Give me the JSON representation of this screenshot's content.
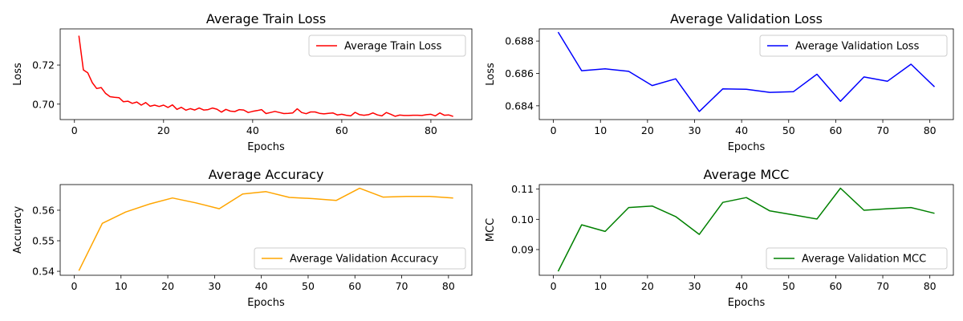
{
  "chart_data": [
    {
      "type": "line",
      "title": "Average Train Loss",
      "xlabel": "Epochs",
      "ylabel": "Loss",
      "xlim": [
        -3.2,
        89.2
      ],
      "ylim": [
        0.6921,
        0.7385
      ],
      "xticks": [
        0,
        20,
        40,
        60,
        80
      ],
      "yticks": [
        0.7,
        0.72
      ],
      "ytick_labels": [
        "0.70",
        "0.72"
      ],
      "legend": "upper right",
      "grid": false,
      "series": [
        {
          "name": "Average Train Loss",
          "color": "#ff0000",
          "x": [
            1,
            2,
            3,
            4,
            5,
            6,
            7,
            8,
            9,
            10,
            11,
            12,
            13,
            14,
            15,
            16,
            17,
            18,
            19,
            20,
            21,
            22,
            23,
            24,
            25,
            26,
            27,
            28,
            29,
            30,
            31,
            32,
            33,
            34,
            35,
            36,
            37,
            38,
            39,
            40,
            41,
            42,
            43,
            44,
            45,
            46,
            47,
            48,
            49,
            50,
            51,
            52,
            53,
            54,
            55,
            56,
            57,
            58,
            59,
            60,
            61,
            62,
            63,
            64,
            65,
            66,
            67,
            68,
            69,
            70,
            71,
            72,
            73,
            74,
            75,
            76,
            77,
            78,
            79,
            80,
            81,
            82,
            83,
            84,
            85
          ],
          "y": [
            0.735,
            0.7175,
            0.716,
            0.711,
            0.708,
            0.7085,
            0.7055,
            0.7038,
            0.7035,
            0.7033,
            0.7012,
            0.7015,
            0.7004,
            0.7011,
            0.6995,
            0.7008,
            0.6989,
            0.6995,
            0.6988,
            0.6995,
            0.6983,
            0.6996,
            0.6973,
            0.6984,
            0.6969,
            0.6977,
            0.697,
            0.698,
            0.697,
            0.6972,
            0.698,
            0.6974,
            0.6959,
            0.6973,
            0.6964,
            0.6962,
            0.6972,
            0.697,
            0.6957,
            0.6963,
            0.6967,
            0.6972,
            0.6952,
            0.6957,
            0.6963,
            0.6957,
            0.6952,
            0.6953,
            0.6955,
            0.6976,
            0.6957,
            0.6951,
            0.696,
            0.696,
            0.6953,
            0.695,
            0.6953,
            0.6955,
            0.6945,
            0.6948,
            0.6943,
            0.694,
            0.6958,
            0.6946,
            0.6943,
            0.6946,
            0.6955,
            0.6945,
            0.694,
            0.6957,
            0.6948,
            0.6938,
            0.6944,
            0.6942,
            0.6942,
            0.6943,
            0.6943,
            0.6942,
            0.6946,
            0.6948,
            0.694,
            0.6955,
            0.6943,
            0.6945,
            0.6937
          ]
        }
      ]
    },
    {
      "type": "line",
      "title": "Average Validation Loss",
      "xlabel": "Epochs",
      "ylabel": "Loss",
      "xlim": [
        -3.0,
        85.0
      ],
      "ylim": [
        0.68315,
        0.68875
      ],
      "xticks": [
        0,
        10,
        20,
        30,
        40,
        50,
        60,
        70,
        80
      ],
      "yticks": [
        0.684,
        0.686,
        0.688
      ],
      "ytick_labels": [
        "0.684",
        "0.686",
        "0.688"
      ],
      "legend": "upper right",
      "grid": false,
      "series": [
        {
          "name": "Average Validation Loss",
          "color": "#0000ff",
          "x": [
            1,
            6,
            11,
            16,
            21,
            26,
            31,
            36,
            41,
            46,
            51,
            56,
            61,
            66,
            71,
            76,
            81
          ],
          "y": [
            0.68855,
            0.68617,
            0.68628,
            0.68613,
            0.68525,
            0.68567,
            0.68365,
            0.68505,
            0.68502,
            0.68483,
            0.68487,
            0.68595,
            0.68428,
            0.68578,
            0.68552,
            0.68657,
            0.68517
          ]
        }
      ]
    },
    {
      "type": "line",
      "title": "Average Accuracy",
      "xlabel": "Epochs",
      "ylabel": "Accuracy",
      "xlim": [
        -3.0,
        85.0
      ],
      "ylim": [
        0.5387,
        0.5684
      ],
      "xticks": [
        0,
        10,
        20,
        30,
        40,
        50,
        60,
        70,
        80
      ],
      "yticks": [
        0.54,
        0.55,
        0.56
      ],
      "ytick_labels": [
        "0.54",
        "0.55",
        "0.56"
      ],
      "legend": "lower right",
      "grid": false,
      "series": [
        {
          "name": "Average Validation Accuracy",
          "color": "#ffa500",
          "x": [
            1,
            6,
            11,
            16,
            21,
            26,
            31,
            36,
            41,
            46,
            51,
            56,
            61,
            66,
            71,
            76,
            81
          ],
          "y": [
            0.5402,
            0.5557,
            0.5594,
            0.562,
            0.564,
            0.5624,
            0.5605,
            0.5653,
            0.5661,
            0.5642,
            0.5638,
            0.5632,
            0.5672,
            0.5643,
            0.5645,
            0.5645,
            0.564
          ]
        }
      ]
    },
    {
      "type": "line",
      "title": "Average MCC",
      "xlabel": "Epochs",
      "ylabel": "MCC",
      "xlim": [
        -3.0,
        85.0
      ],
      "ylim": [
        0.0815,
        0.1115
      ],
      "xticks": [
        0,
        10,
        20,
        30,
        40,
        50,
        60,
        70,
        80
      ],
      "yticks": [
        0.09,
        0.1,
        0.11
      ],
      "ytick_labels": [
        "0.09",
        "0.10",
        "0.11"
      ],
      "legend": "lower right",
      "grid": false,
      "series": [
        {
          "name": "Average Validation MCC",
          "color": "#008000",
          "x": [
            1,
            6,
            11,
            16,
            21,
            26,
            31,
            36,
            41,
            46,
            51,
            56,
            61,
            66,
            71,
            76,
            81
          ],
          "y": [
            0.0828,
            0.0982,
            0.096,
            0.1039,
            0.1044,
            0.1009,
            0.095,
            0.1056,
            0.1072,
            0.1028,
            0.1015,
            0.1001,
            0.1103,
            0.103,
            0.1035,
            0.1039,
            0.102
          ]
        }
      ]
    }
  ]
}
